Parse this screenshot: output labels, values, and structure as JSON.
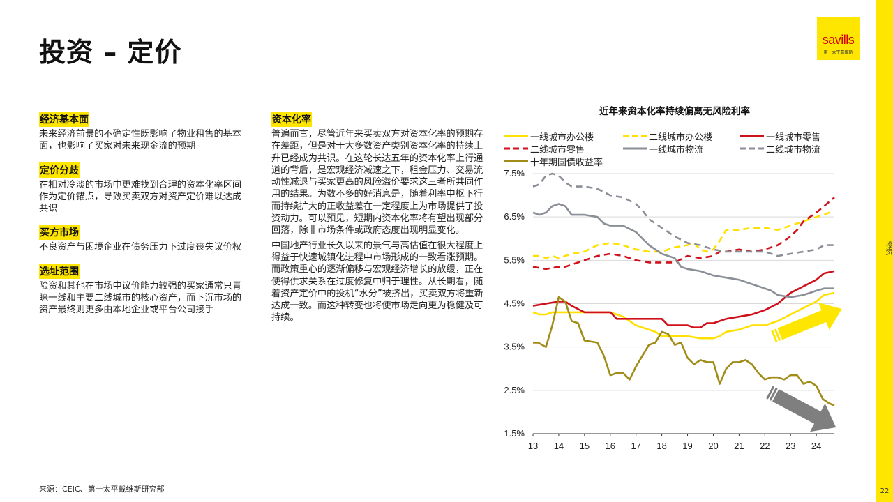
{
  "page": {
    "title": "投资 – 定价",
    "logo_text": "savills",
    "logo_sub": "第一太平戴维斯",
    "side_label": "投资",
    "page_number": "22",
    "source": "来源：CEIC、第一太平戴维斯研究部"
  },
  "left_column": [
    {
      "heading": "经济基本面",
      "text": "未来经济前景的不确定性既影响了物业租售的基本面，也影响了买家对未来现金流的预期"
    },
    {
      "heading": "定价分歧",
      "text": "在相对冷淡的市场中更难找到合理的资本化率区间作为定价锚点，导致买卖双方对资产定价难以达成共识"
    },
    {
      "heading": "买方市场",
      "text": "不良资产与困境企业在债务压力下过度丧失议价权"
    },
    {
      "heading": "选址范围",
      "text": "险资和其他在市场中议价能力较强的买家通常只青睐一线和主要二线城市的核心资产，而下沉市场的资产最终则更多由本地企业或平台公司接手"
    }
  ],
  "middle_column": {
    "heading": "资本化率",
    "paragraphs": [
      "普遍而言，尽管近年来买卖双方对资本化率的预期存在差距，但是对于大多数资产类别资本化率的持续上升已经成为共识。在这轮长达五年的资本化率上行通道的背后，是宏观经济减速之下，租金压力、交易流动性减退与买家更高的风险溢价要求这三者所共同作用的结果。为数不多的好消息是，随着利率中枢下行而持续扩大的正收益差在一定程度上为市场提供了投资动力。可以预见，短期内资本化率将有望出现部分回落，除非市场条件或政府态度出现明显变化。",
      "中国地产行业长久以来的景气与高估值在很大程度上得益于快速城镇化进程中市场形成的一致看涨预期。而政策重心的逐渐偏移与宏观经济增长的放缓，正在使得供求关系在过度修复中归于理性。从长期看，随着资产定价中的投机“水分”被挤出，买卖双方将重新达成一致。而这种转变也将使市场走向更为稳健及可持续。"
    ]
  },
  "chart_data": {
    "type": "line",
    "title": "近年来资本化率持续偏离无风险利率",
    "x_ticks": [
      "13",
      "14",
      "15",
      "16",
      "17",
      "18",
      "19",
      "20",
      "21",
      "22",
      "23",
      "24"
    ],
    "y_ticks": [
      "1.5%",
      "2.5%",
      "3.5%",
      "4.5%",
      "5.5%",
      "6.5%",
      "7.5%"
    ],
    "xlim": [
      13,
      24.7
    ],
    "ylim": [
      1.5,
      7.5
    ],
    "grid": "horizontal",
    "legend_position": "top",
    "series": [
      {
        "name": "一线城市办公楼",
        "color": "#ffe000",
        "dash": "solid",
        "points": [
          [
            13.0,
            4.3
          ],
          [
            13.25,
            4.25
          ],
          [
            13.5,
            4.25
          ],
          [
            13.75,
            4.3
          ],
          [
            14.0,
            4.3
          ],
          [
            14.5,
            4.3
          ],
          [
            15.0,
            4.3
          ],
          [
            15.5,
            4.3
          ],
          [
            16.0,
            4.3
          ],
          [
            16.25,
            4.25
          ],
          [
            16.5,
            4.2
          ],
          [
            16.75,
            4.1
          ],
          [
            17.0,
            4.0
          ],
          [
            17.5,
            3.9
          ],
          [
            17.75,
            3.85
          ],
          [
            18.0,
            3.75
          ],
          [
            18.5,
            3.75
          ],
          [
            19.0,
            3.75
          ],
          [
            19.5,
            3.7
          ],
          [
            20.0,
            3.7
          ],
          [
            20.25,
            3.75
          ],
          [
            20.5,
            3.85
          ],
          [
            21.0,
            3.9
          ],
          [
            21.25,
            3.95
          ],
          [
            21.5,
            4.0
          ],
          [
            22.0,
            4.0
          ],
          [
            22.5,
            4.1
          ],
          [
            23.0,
            4.25
          ],
          [
            23.5,
            4.4
          ],
          [
            24.0,
            4.55
          ],
          [
            24.3,
            4.7
          ],
          [
            24.7,
            4.75
          ]
        ]
      },
      {
        "name": "二线城市办公楼",
        "color": "#ffe000",
        "dash": "dashed",
        "points": [
          [
            13.0,
            5.6
          ],
          [
            13.25,
            5.6
          ],
          [
            13.5,
            5.55
          ],
          [
            13.75,
            5.6
          ],
          [
            14.0,
            5.55
          ],
          [
            14.5,
            5.65
          ],
          [
            15.0,
            5.7
          ],
          [
            15.5,
            5.85
          ],
          [
            16.0,
            5.9
          ],
          [
            16.5,
            5.85
          ],
          [
            17.0,
            5.75
          ],
          [
            17.5,
            5.7
          ],
          [
            18.0,
            5.7
          ],
          [
            18.5,
            5.8
          ],
          [
            19.0,
            5.85
          ],
          [
            19.25,
            5.9
          ],
          [
            19.5,
            5.75
          ],
          [
            19.75,
            5.7
          ],
          [
            20.0,
            5.75
          ],
          [
            20.25,
            5.95
          ],
          [
            20.5,
            6.2
          ],
          [
            21.0,
            6.2
          ],
          [
            21.5,
            6.25
          ],
          [
            22.0,
            6.25
          ],
          [
            22.5,
            6.2
          ],
          [
            23.0,
            6.3
          ],
          [
            23.25,
            6.35
          ],
          [
            23.5,
            6.4
          ],
          [
            24.0,
            6.5
          ],
          [
            24.3,
            6.55
          ],
          [
            24.7,
            6.65
          ]
        ]
      },
      {
        "name": "一线城市零售",
        "color": "#d0101a",
        "dash": "solid",
        "points": [
          [
            13.0,
            4.45
          ],
          [
            13.5,
            4.5
          ],
          [
            14.0,
            4.55
          ],
          [
            14.25,
            4.55
          ],
          [
            14.5,
            4.45
          ],
          [
            15.0,
            4.3
          ],
          [
            15.5,
            4.3
          ],
          [
            16.0,
            4.3
          ],
          [
            16.25,
            4.15
          ],
          [
            16.5,
            4.15
          ],
          [
            17.0,
            4.15
          ],
          [
            17.5,
            4.15
          ],
          [
            18.0,
            4.15
          ],
          [
            18.25,
            4.0
          ],
          [
            18.5,
            4.0
          ],
          [
            19.0,
            4.0
          ],
          [
            19.25,
            3.95
          ],
          [
            19.5,
            3.95
          ],
          [
            19.75,
            4.05
          ],
          [
            20.0,
            4.05
          ],
          [
            20.5,
            4.15
          ],
          [
            21.0,
            4.2
          ],
          [
            21.5,
            4.25
          ],
          [
            22.0,
            4.35
          ],
          [
            22.5,
            4.5
          ],
          [
            23.0,
            4.75
          ],
          [
            23.5,
            4.9
          ],
          [
            24.0,
            5.05
          ],
          [
            24.3,
            5.2
          ],
          [
            24.7,
            5.25
          ]
        ]
      },
      {
        "name": "二线城市零售",
        "color": "#d0101a",
        "dash": "dashed",
        "points": [
          [
            13.0,
            5.35
          ],
          [
            13.5,
            5.3
          ],
          [
            14.0,
            5.35
          ],
          [
            14.25,
            5.35
          ],
          [
            14.5,
            5.4
          ],
          [
            15.0,
            5.5
          ],
          [
            15.5,
            5.6
          ],
          [
            16.0,
            5.65
          ],
          [
            16.5,
            5.6
          ],
          [
            17.0,
            5.5
          ],
          [
            17.5,
            5.45
          ],
          [
            18.0,
            5.45
          ],
          [
            18.5,
            5.45
          ],
          [
            19.0,
            5.6
          ],
          [
            19.5,
            5.55
          ],
          [
            20.0,
            5.6
          ],
          [
            20.25,
            5.7
          ],
          [
            20.5,
            5.7
          ],
          [
            21.0,
            5.75
          ],
          [
            21.5,
            5.7
          ],
          [
            22.0,
            5.75
          ],
          [
            22.5,
            5.85
          ],
          [
            23.0,
            6.05
          ],
          [
            23.25,
            6.2
          ],
          [
            23.5,
            6.4
          ],
          [
            24.0,
            6.6
          ],
          [
            24.3,
            6.75
          ],
          [
            24.7,
            6.95
          ]
        ]
      },
      {
        "name": "一线城市物流",
        "color": "#8a8e96",
        "dash": "solid",
        "points": [
          [
            13.0,
            6.6
          ],
          [
            13.25,
            6.55
          ],
          [
            13.5,
            6.6
          ],
          [
            13.75,
            6.75
          ],
          [
            14.0,
            6.8
          ],
          [
            14.25,
            6.75
          ],
          [
            14.5,
            6.55
          ],
          [
            15.0,
            6.55
          ],
          [
            15.5,
            6.5
          ],
          [
            15.75,
            6.35
          ],
          [
            16.0,
            6.3
          ],
          [
            16.5,
            6.3
          ],
          [
            17.0,
            6.15
          ],
          [
            17.25,
            6.0
          ],
          [
            17.5,
            5.85
          ],
          [
            18.0,
            5.65
          ],
          [
            18.5,
            5.55
          ],
          [
            18.75,
            5.35
          ],
          [
            19.0,
            5.3
          ],
          [
            19.5,
            5.25
          ],
          [
            20.0,
            5.15
          ],
          [
            20.5,
            5.1
          ],
          [
            21.0,
            5.05
          ],
          [
            21.5,
            4.95
          ],
          [
            22.0,
            4.85
          ],
          [
            22.25,
            4.8
          ],
          [
            22.5,
            4.7
          ],
          [
            23.0,
            4.65
          ],
          [
            23.5,
            4.7
          ],
          [
            24.0,
            4.8
          ],
          [
            24.3,
            4.85
          ],
          [
            24.7,
            4.85
          ]
        ]
      },
      {
        "name": "二线城市物流",
        "color": "#8a8e96",
        "dash": "dashed",
        "points": [
          [
            13.0,
            7.2
          ],
          [
            13.25,
            7.25
          ],
          [
            13.5,
            7.45
          ],
          [
            13.75,
            7.5
          ],
          [
            14.0,
            7.45
          ],
          [
            14.25,
            7.3
          ],
          [
            14.5,
            7.2
          ],
          [
            15.0,
            7.2
          ],
          [
            15.5,
            7.15
          ],
          [
            16.0,
            7.0
          ],
          [
            16.5,
            6.95
          ],
          [
            17.0,
            6.8
          ],
          [
            17.25,
            6.65
          ],
          [
            17.5,
            6.45
          ],
          [
            18.0,
            6.25
          ],
          [
            18.5,
            6.05
          ],
          [
            19.0,
            5.9
          ],
          [
            19.5,
            5.85
          ],
          [
            20.0,
            5.75
          ],
          [
            20.5,
            5.7
          ],
          [
            21.0,
            5.7
          ],
          [
            21.5,
            5.7
          ],
          [
            22.0,
            5.7
          ],
          [
            22.5,
            5.6
          ],
          [
            23.0,
            5.65
          ],
          [
            23.5,
            5.7
          ],
          [
            24.0,
            5.75
          ],
          [
            24.3,
            5.85
          ],
          [
            24.7,
            5.85
          ]
        ]
      },
      {
        "name": "十年期国债收益率",
        "color": "#a08c16",
        "dash": "solid",
        "points": [
          [
            13.0,
            3.6
          ],
          [
            13.2,
            3.6
          ],
          [
            13.5,
            3.5
          ],
          [
            13.75,
            4.0
          ],
          [
            14.0,
            4.65
          ],
          [
            14.25,
            4.55
          ],
          [
            14.5,
            4.1
          ],
          [
            14.75,
            4.05
          ],
          [
            15.0,
            3.65
          ],
          [
            15.5,
            3.6
          ],
          [
            15.75,
            3.3
          ],
          [
            16.0,
            2.85
          ],
          [
            16.25,
            2.9
          ],
          [
            16.5,
            2.9
          ],
          [
            16.75,
            2.75
          ],
          [
            17.0,
            3.05
          ],
          [
            17.25,
            3.3
          ],
          [
            17.5,
            3.55
          ],
          [
            17.75,
            3.6
          ],
          [
            18.0,
            3.85
          ],
          [
            18.25,
            3.8
          ],
          [
            18.5,
            3.55
          ],
          [
            18.75,
            3.6
          ],
          [
            19.0,
            3.25
          ],
          [
            19.25,
            3.1
          ],
          [
            19.5,
            3.2
          ],
          [
            19.75,
            3.15
          ],
          [
            20.0,
            3.15
          ],
          [
            20.25,
            2.65
          ],
          [
            20.5,
            3.0
          ],
          [
            20.75,
            3.15
          ],
          [
            21.0,
            3.15
          ],
          [
            21.25,
            3.2
          ],
          [
            21.5,
            3.1
          ],
          [
            21.75,
            2.9
          ],
          [
            22.0,
            2.75
          ],
          [
            22.25,
            2.8
          ],
          [
            22.5,
            2.8
          ],
          [
            22.75,
            2.75
          ],
          [
            23.0,
            2.85
          ],
          [
            23.25,
            2.85
          ],
          [
            23.5,
            2.65
          ],
          [
            23.75,
            2.7
          ],
          [
            24.0,
            2.6
          ],
          [
            24.25,
            2.3
          ],
          [
            24.5,
            2.2
          ],
          [
            24.7,
            2.15
          ]
        ]
      }
    ],
    "annotations": [
      {
        "type": "arrow-up",
        "color": "#ffe600"
      },
      {
        "type": "arrow-down",
        "color": "#7f7f7f"
      }
    ]
  }
}
